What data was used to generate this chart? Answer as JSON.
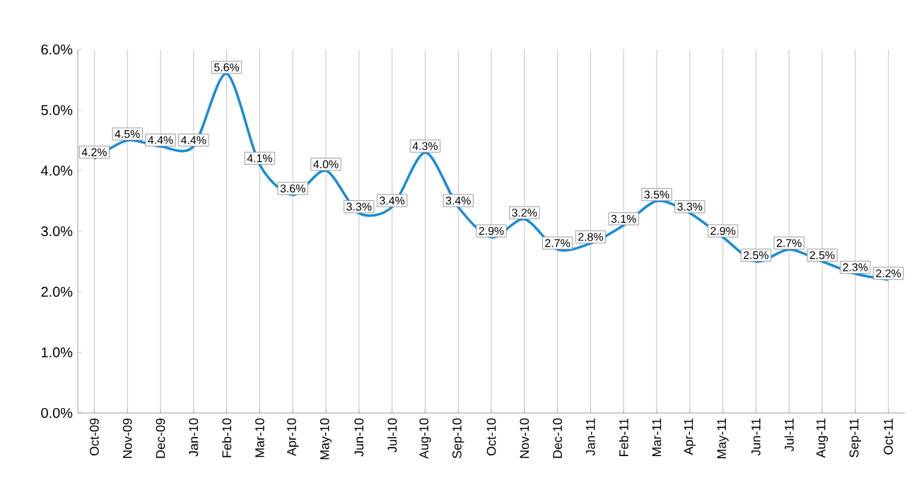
{
  "chart_data": {
    "type": "line",
    "categories": [
      "Oct-09",
      "Nov-09",
      "Dec-09",
      "Jan-10",
      "Feb-10",
      "Mar-10",
      "Apr-10",
      "May-10",
      "Jun-10",
      "Jul-10",
      "Aug-10",
      "Sep-10",
      "Oct-10",
      "Nov-10",
      "Dec-10",
      "Jan-11",
      "Feb-11",
      "Mar-11",
      "Apr-11",
      "May-11",
      "Jun-11",
      "Jul-11",
      "Aug-11",
      "Sep-11",
      "Oct-11"
    ],
    "values": [
      4.2,
      4.5,
      4.4,
      4.4,
      5.6,
      4.1,
      3.6,
      4.0,
      3.3,
      3.4,
      4.3,
      3.4,
      2.9,
      3.2,
      2.7,
      2.8,
      3.1,
      3.5,
      3.3,
      2.9,
      2.5,
      2.7,
      2.5,
      2.3,
      2.2
    ],
    "value_labels": [
      "4.2%",
      "4.5%",
      "4.4%",
      "4.4%",
      "5.6%",
      "4.1%",
      "3.6%",
      "4.0%",
      "3.3%",
      "3.4%",
      "4.3%",
      "3.4%",
      "2.9%",
      "3.2%",
      "2.7%",
      "2.8%",
      "3.1%",
      "3.5%",
      "3.3%",
      "2.9%",
      "2.5%",
      "2.7%",
      "2.5%",
      "2.3%",
      "2.2%"
    ],
    "color": "#1a8cd8",
    "ylim": [
      0,
      6
    ],
    "yticks": [
      {
        "value": 0,
        "label": "0.0%"
      },
      {
        "value": 1,
        "label": "1.0%"
      },
      {
        "value": 2,
        "label": "2.0%"
      },
      {
        "value": 3,
        "label": "3.0%"
      },
      {
        "value": 4,
        "label": "4.0%"
      },
      {
        "value": 5,
        "label": "5.0%"
      },
      {
        "value": 6,
        "label": "6.0%"
      }
    ],
    "grid": "x",
    "marker": "none",
    "line_style": "solid"
  }
}
